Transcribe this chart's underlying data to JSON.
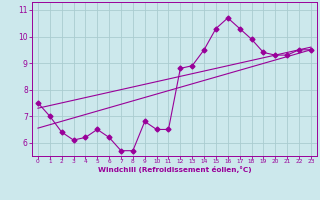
{
  "xlabel": "Windchill (Refroidissement éolien,°C)",
  "xlim": [
    -0.5,
    23.5
  ],
  "ylim": [
    5.5,
    11.3
  ],
  "yticks": [
    6,
    7,
    8,
    9,
    10,
    11
  ],
  "xticks": [
    0,
    1,
    2,
    3,
    4,
    5,
    6,
    7,
    8,
    9,
    10,
    11,
    12,
    13,
    14,
    15,
    16,
    17,
    18,
    19,
    20,
    21,
    22,
    23
  ],
  "bg_color": "#cce8ec",
  "line_color": "#990099",
  "grid_color": "#aaccd0",
  "series1_x": [
    0,
    1,
    2,
    3,
    4,
    5,
    6,
    7,
    8,
    9,
    10,
    11,
    12,
    13,
    14,
    15,
    16,
    17,
    18,
    19,
    20,
    21,
    22,
    23
  ],
  "series1_y": [
    7.5,
    7.0,
    6.4,
    6.1,
    6.2,
    6.5,
    6.2,
    5.7,
    5.7,
    6.8,
    6.5,
    6.5,
    8.8,
    8.9,
    9.5,
    10.3,
    10.7,
    10.3,
    9.9,
    9.4,
    9.3,
    9.3,
    9.5,
    9.5
  ],
  "series2_x": [
    0,
    23
  ],
  "series2_y": [
    6.55,
    9.5
  ],
  "series3_x": [
    0,
    23
  ],
  "series3_y": [
    7.3,
    9.6
  ]
}
